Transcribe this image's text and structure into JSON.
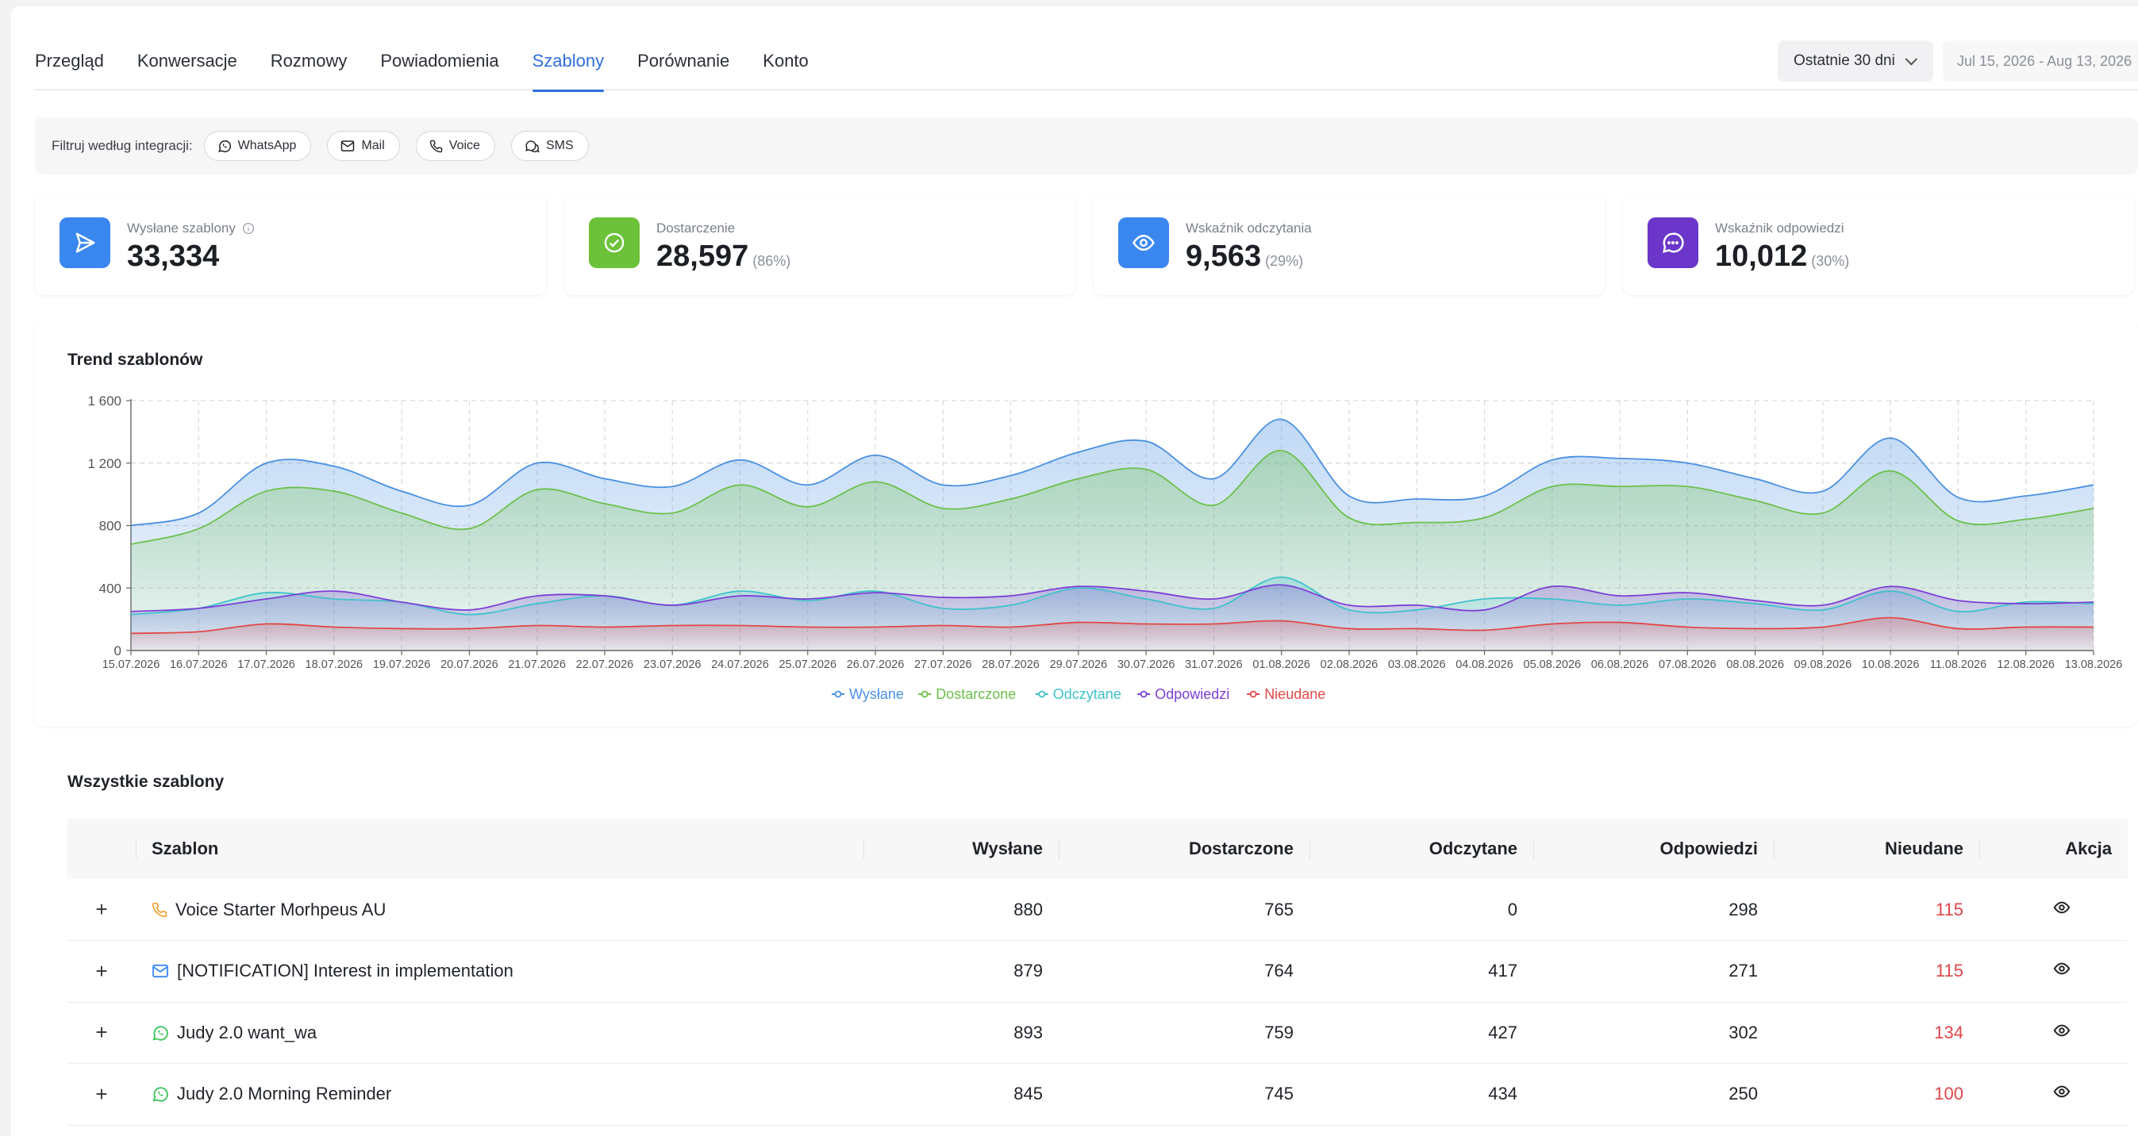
{
  "nav": {
    "tabs": [
      "Przegląd",
      "Konwersacje",
      "Rozmowy",
      "Powiadomienia",
      "Szablony",
      "Porównanie",
      "Konto"
    ],
    "active_tab": "Szablony",
    "range_select": "Ostatnie 30 dni",
    "date_range": "Jul 15, 2026 - Aug 13, 2026"
  },
  "filters": {
    "label": "Filtruj według integracji:",
    "chips": [
      {
        "label": "WhatsApp",
        "icon": "whatsapp-icon"
      },
      {
        "label": "Mail",
        "icon": "mail-icon"
      },
      {
        "label": "Voice",
        "icon": "phone-icon"
      },
      {
        "label": "SMS",
        "icon": "sms-icon"
      }
    ]
  },
  "stats": [
    {
      "label": "Wysłane szablony",
      "value": "33,334",
      "pct": "",
      "icon": "send-icon",
      "color": "#3b87f0",
      "info": true
    },
    {
      "label": "Dostarczenie",
      "value": "28,597",
      "pct": "(86%)",
      "icon": "check-circle-icon",
      "color": "#6cc23a",
      "info": false
    },
    {
      "label": "Wskaźnik odczytania",
      "value": "9,563",
      "pct": "(29%)",
      "icon": "eye-icon",
      "color": "#3b87f0",
      "info": false
    },
    {
      "label": "Wskaźnik odpowiedzi",
      "value": "10,012",
      "pct": "(30%)",
      "icon": "chat-icon",
      "color": "#6b36c9",
      "info": false
    }
  ],
  "chart_title": "Trend szablonów",
  "chart_data": {
    "type": "area",
    "x": [
      "15.07.2026",
      "16.07.2026",
      "17.07.2026",
      "18.07.2026",
      "19.07.2026",
      "20.07.2026",
      "21.07.2026",
      "22.07.2026",
      "23.07.2026",
      "24.07.2026",
      "25.07.2026",
      "26.07.2026",
      "27.07.2026",
      "28.07.2026",
      "29.07.2026",
      "30.07.2026",
      "31.07.2026",
      "01.08.2026",
      "02.08.2026",
      "03.08.2026",
      "04.08.2026",
      "05.08.2026",
      "06.08.2026",
      "07.08.2026",
      "08.08.2026",
      "09.08.2026",
      "10.08.2026",
      "11.08.2026",
      "12.08.2026",
      "13.08.2026"
    ],
    "yticks": [
      0,
      400,
      800,
      1200,
      1600
    ],
    "ytick_labels": [
      "0",
      "400",
      "800",
      "1 200",
      "1 600"
    ],
    "ylim": [
      0,
      1600
    ],
    "grid": true,
    "legend_position": "bottom",
    "series": [
      {
        "name": "Wysłane",
        "color": "#4a90e2",
        "values": [
          800,
          880,
          1200,
          1180,
          1020,
          930,
          1200,
          1100,
          1050,
          1220,
          1060,
          1250,
          1060,
          1120,
          1270,
          1340,
          1100,
          1480,
          990,
          970,
          990,
          1220,
          1230,
          1200,
          1100,
          1020,
          1360,
          980,
          990,
          1060
        ]
      },
      {
        "name": "Dostarczone",
        "color": "#6cc04a",
        "values": [
          680,
          780,
          1020,
          1020,
          880,
          780,
          1030,
          940,
          880,
          1060,
          920,
          1080,
          910,
          970,
          1100,
          1160,
          930,
          1280,
          850,
          820,
          850,
          1050,
          1050,
          1050,
          960,
          880,
          1150,
          830,
          840,
          910
        ]
      },
      {
        "name": "Odczytane",
        "color": "#3fc1c9",
        "values": [
          230,
          270,
          370,
          330,
          310,
          230,
          300,
          350,
          290,
          380,
          320,
          380,
          270,
          290,
          400,
          330,
          270,
          470,
          260,
          260,
          330,
          330,
          290,
          330,
          300,
          260,
          380,
          250,
          310,
          300
        ]
      },
      {
        "name": "Odpowiedzi",
        "color": "#7b3fd6",
        "values": [
          250,
          270,
          330,
          380,
          310,
          260,
          350,
          350,
          290,
          350,
          330,
          370,
          340,
          350,
          410,
          380,
          330,
          420,
          290,
          290,
          260,
          410,
          350,
          370,
          320,
          290,
          410,
          320,
          300,
          310
        ]
      },
      {
        "name": "Nieudane",
        "color": "#e04848",
        "values": [
          110,
          120,
          170,
          150,
          140,
          140,
          160,
          150,
          160,
          160,
          150,
          150,
          160,
          150,
          180,
          170,
          170,
          190,
          140,
          140,
          130,
          170,
          180,
          150,
          140,
          150,
          210,
          140,
          150,
          150
        ]
      }
    ]
  },
  "table": {
    "title": "Wszystkie szablony",
    "columns": [
      "Szablon",
      "Wysłane",
      "Dostarczone",
      "Odczytane",
      "Odpowiedzi",
      "Nieudane",
      "Akcja"
    ],
    "rows": [
      {
        "channel": "voice",
        "name": "Voice Starter Morhpeus AU",
        "sent": "880",
        "delivered": "765",
        "read": "0",
        "replies": "298",
        "failed": "115"
      },
      {
        "channel": "mail",
        "name": "[NOTIFICATION] Interest in implementation",
        "sent": "879",
        "delivered": "764",
        "read": "417",
        "replies": "271",
        "failed": "115"
      },
      {
        "channel": "whatsapp",
        "name": "Judy 2.0 want_wa",
        "sent": "893",
        "delivered": "759",
        "read": "427",
        "replies": "302",
        "failed": "134"
      },
      {
        "channel": "whatsapp",
        "name": "Judy 2.0 Morning Reminder",
        "sent": "845",
        "delivered": "745",
        "read": "434",
        "replies": "250",
        "failed": "100"
      }
    ],
    "expand_symbol": "+",
    "channel_colors": {
      "voice": "#f0a030",
      "mail": "#3b87f0",
      "whatsapp": "#3cc35a"
    }
  }
}
